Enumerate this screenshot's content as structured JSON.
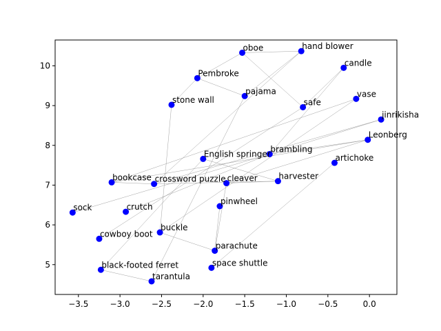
{
  "chart_data": {
    "type": "scatter",
    "title": "",
    "xlabel": "",
    "ylabel": "",
    "xlim": [
      -3.78,
      0.33
    ],
    "ylim": [
      4.25,
      10.65
    ],
    "xticks": [
      -3.5,
      -3.0,
      -2.5,
      -2.0,
      -1.5,
      -1.0,
      -0.5,
      0.0
    ],
    "xtick_labels": [
      "−3.5",
      "−3.0",
      "−2.5",
      "−2.0",
      "−1.5",
      "−1.0",
      "−0.5",
      "0.0"
    ],
    "yticks": [
      5,
      6,
      7,
      8,
      9,
      10
    ],
    "ytick_labels": [
      "5",
      "6",
      "7",
      "8",
      "9",
      "10"
    ],
    "grid": false,
    "colors": {
      "marker": "#0000ff",
      "edge": "#888888",
      "axis": "#000000"
    },
    "points": [
      {
        "label": "oboe",
        "x": -1.53,
        "y": 10.33
      },
      {
        "label": "hand blower",
        "x": -0.82,
        "y": 10.37
      },
      {
        "label": "candle",
        "x": -0.31,
        "y": 9.95
      },
      {
        "label": "Pembroke",
        "x": -2.07,
        "y": 9.69
      },
      {
        "label": "pajama",
        "x": -1.5,
        "y": 9.24
      },
      {
        "label": "stone wall",
        "x": -2.38,
        "y": 9.02
      },
      {
        "label": "safe",
        "x": -0.8,
        "y": 8.96
      },
      {
        "label": "vase",
        "x": -0.16,
        "y": 9.17
      },
      {
        "label": "jinrikisha",
        "x": 0.14,
        "y": 8.65
      },
      {
        "label": "Leonberg",
        "x": -0.02,
        "y": 8.14
      },
      {
        "label": "brambling",
        "x": -1.2,
        "y": 7.78
      },
      {
        "label": "English springer",
        "x": -2.0,
        "y": 7.66
      },
      {
        "label": "artichoke",
        "x": -0.42,
        "y": 7.56
      },
      {
        "label": "bookcase",
        "x": -3.1,
        "y": 7.07
      },
      {
        "label": "crossword puzzle",
        "x": -2.59,
        "y": 7.03
      },
      {
        "label": "cleaver",
        "x": -1.72,
        "y": 7.05
      },
      {
        "label": "harvester",
        "x": -1.1,
        "y": 7.1
      },
      {
        "label": "sock",
        "x": -3.57,
        "y": 6.31
      },
      {
        "label": "crutch",
        "x": -2.93,
        "y": 6.33
      },
      {
        "label": "pinwheel",
        "x": -1.8,
        "y": 6.47
      },
      {
        "label": "buckle",
        "x": -2.52,
        "y": 5.81
      },
      {
        "label": "cowboy boot",
        "x": -3.25,
        "y": 5.65
      },
      {
        "label": "parachute",
        "x": -1.86,
        "y": 5.35
      },
      {
        "label": "space shuttle",
        "x": -1.9,
        "y": 4.92
      },
      {
        "label": "black-footed ferret",
        "x": -3.23,
        "y": 4.87
      },
      {
        "label": "tarantula",
        "x": -2.62,
        "y": 4.58
      }
    ],
    "edges": [
      [
        "oboe",
        "hand blower"
      ],
      [
        "oboe",
        "safe"
      ],
      [
        "oboe",
        "Pembroke"
      ],
      [
        "hand blower",
        "pajama"
      ],
      [
        "hand blower",
        "crossword puzzle"
      ],
      [
        "Pembroke",
        "pajama"
      ],
      [
        "Pembroke",
        "stone wall"
      ],
      [
        "pajama",
        "tarantula"
      ],
      [
        "stone wall",
        "buckle"
      ],
      [
        "candle",
        "safe"
      ],
      [
        "candle",
        "brambling"
      ],
      [
        "safe",
        "cowboy boot"
      ],
      [
        "vase",
        "bookcase"
      ],
      [
        "vase",
        "buckle"
      ],
      [
        "jinrikisha",
        "crossword puzzle"
      ],
      [
        "jinrikisha",
        "brambling"
      ],
      [
        "Leonberg",
        "brambling"
      ],
      [
        "Leonberg",
        "cleaver"
      ],
      [
        "Leonberg",
        "bookcase"
      ],
      [
        "English springer",
        "harvester"
      ],
      [
        "English springer",
        "black-footed ferret"
      ],
      [
        "brambling",
        "sock"
      ],
      [
        "brambling",
        "crutch"
      ],
      [
        "artichoke",
        "space shuttle"
      ],
      [
        "cleaver",
        "harvester"
      ],
      [
        "cleaver",
        "parachute"
      ],
      [
        "harvester",
        "crossword puzzle"
      ],
      [
        "bookcase",
        "crossword puzzle"
      ],
      [
        "pinwheel",
        "parachute"
      ],
      [
        "buckle",
        "parachute"
      ],
      [
        "black-footed ferret",
        "tarantula"
      ]
    ]
  }
}
